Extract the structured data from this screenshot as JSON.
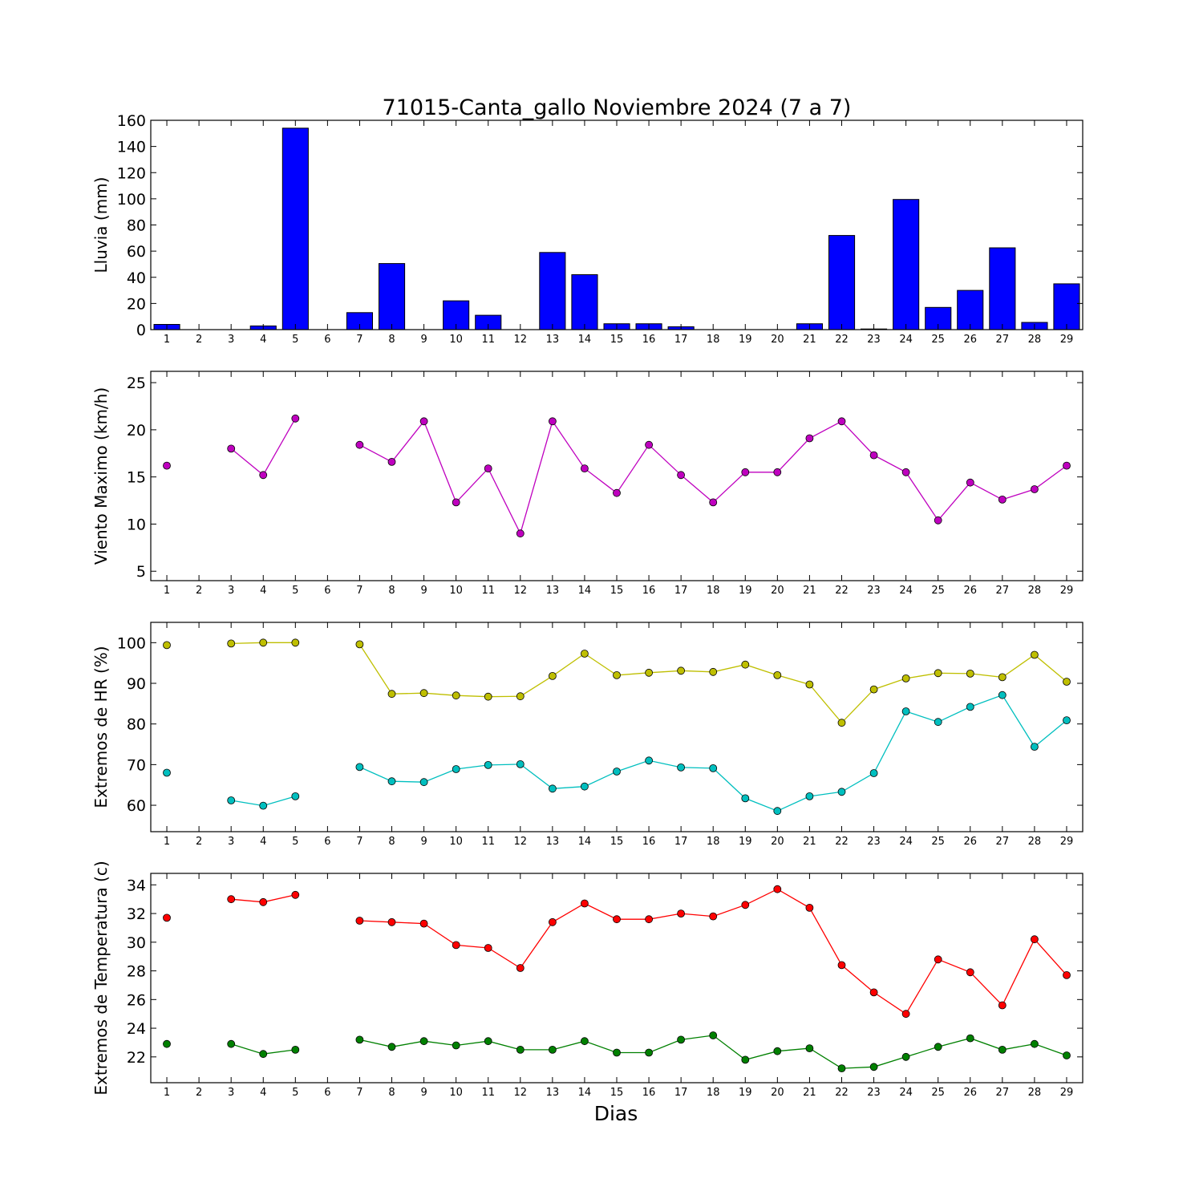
{
  "figure": {
    "title": "71015-Canta_gallo Noviembre 2024  (7 a 7)",
    "xlabel": "Dias"
  },
  "chart_data": [
    {
      "type": "bar",
      "id": "lluvia",
      "ylabel": "Lluvia (mm)",
      "ylim": [
        0,
        160
      ],
      "yticks": [
        0,
        20,
        40,
        60,
        80,
        100,
        120,
        140,
        160
      ],
      "xticks": [
        1,
        2,
        3,
        4,
        5,
        6,
        7,
        8,
        9,
        10,
        11,
        12,
        13,
        14,
        15,
        16,
        17,
        18,
        19,
        20,
        21,
        22,
        23,
        24,
        25,
        26,
        27,
        28,
        29
      ],
      "x": [
        1,
        2,
        3,
        4,
        5,
        6,
        7,
        8,
        9,
        10,
        11,
        12,
        13,
        14,
        15,
        16,
        17,
        18,
        19,
        20,
        21,
        22,
        23,
        24,
        25,
        26,
        27,
        28,
        29
      ],
      "series": [
        {
          "color": "#0000ff",
          "values": [
            4,
            0,
            0,
            2.8,
            154,
            0,
            13,
            50.5,
            0,
            22,
            11,
            0,
            59,
            42,
            4.5,
            4.5,
            2.2,
            0,
            0,
            0,
            4.5,
            72,
            0.5,
            99.5,
            17,
            30,
            62.5,
            5.5,
            35
          ]
        }
      ]
    },
    {
      "type": "line",
      "id": "viento",
      "ylabel": "Viento Maximo (km/h)",
      "ylim": [
        4,
        26.2
      ],
      "yticks": [
        5,
        10,
        15,
        20,
        25
      ],
      "xticks": [
        1,
        2,
        3,
        4,
        5,
        6,
        7,
        8,
        9,
        10,
        11,
        12,
        13,
        14,
        15,
        16,
        17,
        18,
        19,
        20,
        21,
        22,
        23,
        24,
        25,
        26,
        27,
        28,
        29
      ],
      "x": [
        1,
        2,
        3,
        4,
        5,
        6,
        7,
        8,
        9,
        10,
        11,
        12,
        13,
        14,
        15,
        16,
        17,
        18,
        19,
        20,
        21,
        22,
        23,
        24,
        25,
        26,
        27,
        28,
        29
      ],
      "series": [
        {
          "color": "#bf00bf",
          "values": [
            16.2,
            null,
            18.0,
            15.2,
            21.2,
            null,
            18.4,
            16.6,
            20.9,
            12.3,
            15.9,
            9.0,
            20.9,
            15.9,
            13.3,
            18.4,
            15.2,
            12.3,
            15.5,
            15.5,
            19.1,
            20.9,
            17.3,
            15.5,
            10.4,
            14.4,
            12.6,
            13.7,
            16.2
          ]
        }
      ]
    },
    {
      "type": "line",
      "id": "hr",
      "ylabel": "Extremos de HR (%)",
      "ylim": [
        53.5,
        105
      ],
      "yticks": [
        60,
        70,
        80,
        90,
        100
      ],
      "xticks": [
        1,
        2,
        3,
        4,
        5,
        6,
        7,
        8,
        9,
        10,
        11,
        12,
        13,
        14,
        15,
        16,
        17,
        18,
        19,
        20,
        21,
        22,
        23,
        24,
        25,
        26,
        27,
        28,
        29
      ],
      "x": [
        1,
        2,
        3,
        4,
        5,
        6,
        7,
        8,
        9,
        10,
        11,
        12,
        13,
        14,
        15,
        16,
        17,
        18,
        19,
        20,
        21,
        22,
        23,
        24,
        25,
        26,
        27,
        28,
        29
      ],
      "series": [
        {
          "color": "#bfbf00",
          "values": [
            99.4,
            null,
            99.8,
            100.0,
            100.0,
            null,
            99.6,
            87.4,
            87.6,
            87.0,
            86.7,
            86.8,
            91.8,
            97.3,
            92.0,
            92.6,
            93.1,
            92.8,
            94.6,
            92.0,
            89.7,
            80.3,
            88.5,
            91.2,
            92.5,
            92.4,
            91.5,
            97.0,
            90.4
          ]
        },
        {
          "color": "#00bfbf",
          "values": [
            68.0,
            null,
            61.2,
            59.9,
            62.2,
            null,
            69.4,
            65.9,
            65.7,
            68.9,
            69.9,
            70.1,
            64.1,
            64.6,
            68.3,
            71.0,
            69.3,
            69.1,
            61.7,
            58.6,
            62.2,
            63.3,
            67.9,
            83.1,
            80.5,
            84.2,
            87.1,
            74.4,
            80.9
          ]
        }
      ]
    },
    {
      "type": "line",
      "id": "temperatura",
      "ylabel": "Extremos de Temperatura (c)",
      "ylim": [
        20.2,
        34.8
      ],
      "yticks": [
        22,
        24,
        26,
        28,
        30,
        32,
        34
      ],
      "xticks": [
        1,
        2,
        3,
        4,
        5,
        6,
        7,
        8,
        9,
        10,
        11,
        12,
        13,
        14,
        15,
        16,
        17,
        18,
        19,
        20,
        21,
        22,
        23,
        24,
        25,
        26,
        27,
        28,
        29
      ],
      "x": [
        1,
        2,
        3,
        4,
        5,
        6,
        7,
        8,
        9,
        10,
        11,
        12,
        13,
        14,
        15,
        16,
        17,
        18,
        19,
        20,
        21,
        22,
        23,
        24,
        25,
        26,
        27,
        28,
        29
      ],
      "series": [
        {
          "color": "#ff0000",
          "values": [
            31.7,
            null,
            33.0,
            32.8,
            33.3,
            null,
            31.5,
            31.4,
            31.3,
            29.8,
            29.6,
            28.2,
            31.4,
            32.7,
            31.6,
            31.6,
            32.0,
            31.8,
            32.6,
            33.7,
            32.4,
            28.4,
            26.5,
            25.0,
            28.8,
            27.9,
            25.6,
            30.2,
            27.7
          ]
        },
        {
          "color": "#008000",
          "values": [
            22.9,
            null,
            22.9,
            22.2,
            22.5,
            null,
            23.2,
            22.7,
            23.1,
            22.8,
            23.1,
            22.5,
            22.5,
            23.1,
            22.3,
            22.3,
            23.2,
            23.5,
            21.8,
            22.4,
            22.6,
            21.2,
            21.3,
            22.0,
            22.7,
            23.3,
            22.5,
            22.9,
            22.1
          ]
        }
      ]
    }
  ]
}
